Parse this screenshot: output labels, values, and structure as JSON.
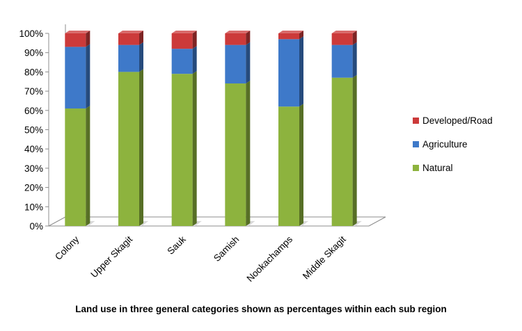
{
  "chart_data": {
    "type": "bar",
    "stacked": true,
    "percent_stacked": true,
    "three_d": true,
    "categories": [
      "Colony",
      "Upper Skagit",
      "Sauk",
      "Samish",
      "Nookachamps",
      "Middle Skagit"
    ],
    "series": [
      {
        "name": "Natural",
        "color": "#8DB33E",
        "values": [
          61,
          80,
          79,
          74,
          62,
          77
        ]
      },
      {
        "name": "Agriculture",
        "color": "#3E79C9",
        "values": [
          32,
          14,
          13,
          20,
          35,
          17
        ]
      },
      {
        "name": "Developed/Road",
        "color": "#CC3A3A",
        "values": [
          7,
          6,
          8,
          6,
          3,
          6
        ]
      }
    ],
    "yticks": [
      "0%",
      "10%",
      "20%",
      "30%",
      "40%",
      "50%",
      "60%",
      "70%",
      "80%",
      "90%",
      "100%"
    ],
    "ylim": [
      0,
      100
    ],
    "grid": false,
    "legend_position": "right",
    "caption": "Land use in three general categories shown as percentages within each sub region"
  }
}
